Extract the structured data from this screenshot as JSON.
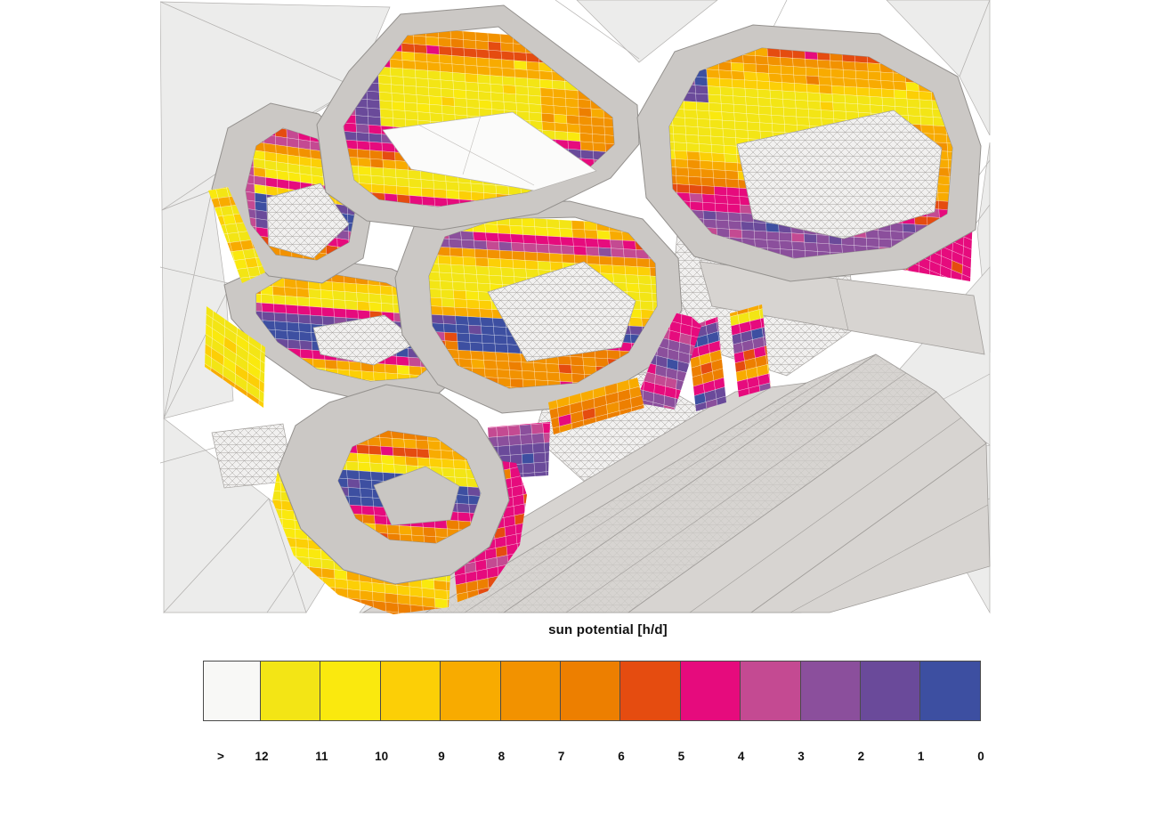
{
  "legend": {
    "title": "sun potential [h/d]",
    "tick_labels": [
      ">",
      "12",
      "11",
      "10",
      "9",
      "8",
      "7",
      "6",
      "5",
      "4",
      "3",
      "2",
      "1",
      "0"
    ],
    "cell_colors": [
      "#f8f8f6",
      "#f3e515",
      "#fae90e",
      "#fccf06",
      "#f8ab00",
      "#f29200",
      "#ed7f00",
      "#e54c10",
      "#e60b7d",
      "#c44a92",
      "#8b4f9c",
      "#6a4a9a",
      "#3d4fa1"
    ],
    "value_unit": "h/d",
    "value_max_label": "12",
    "value_min_label": "0"
  },
  "render_colors": {
    "roof_gray": "#cbc8c5",
    "roof_edge": "#94918e",
    "terrain_fill": "#ececeb",
    "terrain_edge": "#b4b2b0",
    "mesh_line": "#a6a3a0",
    "dense_roof_fill": "#d7d4d1",
    "courtyard_floor": "#c9c6c3",
    "background": "#ffffff"
  }
}
